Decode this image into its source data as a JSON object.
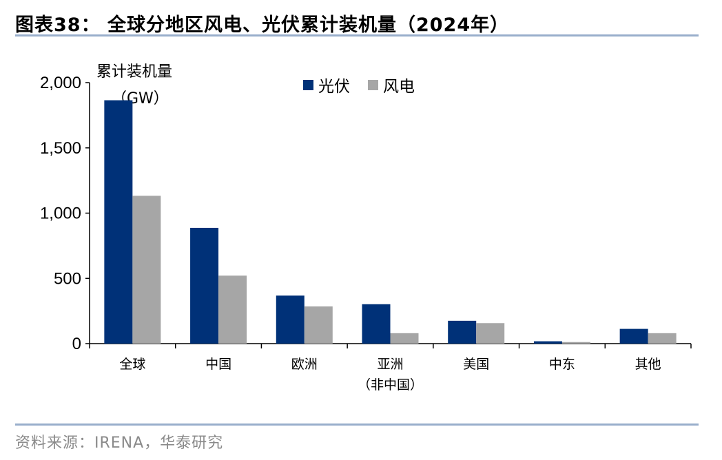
{
  "figure": {
    "title": "图表38：  全球分地区风电、光伏累计装机量（2024年）",
    "source": "资料来源：IRENA，华泰研究"
  },
  "colors": {
    "solar": "#003178",
    "wind": "#a6a6a6",
    "rule": "#98aecb"
  },
  "chart_data": {
    "type": "bar",
    "title": "",
    "ylabel_line1": "累计装机量",
    "ylabel_line2": "（GW）",
    "xlabel": "",
    "ylim": [
      0,
      2000
    ],
    "yticks": [
      0,
      500,
      1000,
      1500,
      2000
    ],
    "ytick_labels": [
      "0",
      "500",
      "1,000",
      "1,500",
      "2,000"
    ],
    "categories": [
      "全球",
      "中国",
      "欧洲",
      "亚洲",
      "美国",
      "中东",
      "其他"
    ],
    "category_sublabels": [
      "",
      "",
      "",
      "（非中国）",
      "",
      "",
      ""
    ],
    "series": [
      {
        "name": "光伏",
        "values": [
          1865,
          887,
          368,
          302,
          175,
          18,
          113
        ]
      },
      {
        "name": "风电",
        "values": [
          1133,
          521,
          285,
          80,
          157,
          12,
          80
        ]
      }
    ],
    "legend_position": "top-center",
    "grid": false
  }
}
